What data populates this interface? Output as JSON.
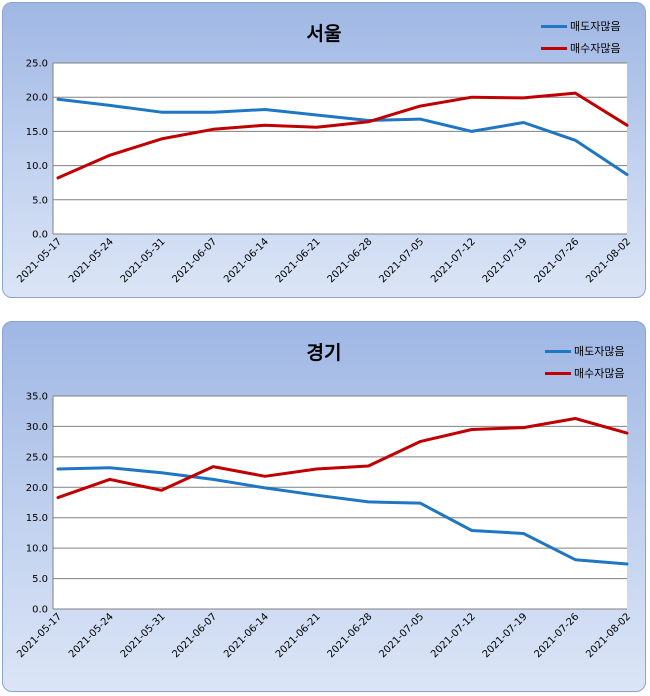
{
  "chart_data": [
    {
      "type": "line",
      "title": "서울",
      "categories": [
        "2021-05-17",
        "2021-05-24",
        "2021-05-31",
        "2021-06-07",
        "2021-06-14",
        "2021-06-21",
        "2021-06-28",
        "2021-07-05",
        "2021-07-12",
        "2021-07-19",
        "2021-07-26",
        "2021-08-02"
      ],
      "series": [
        {
          "name": "매도자많음",
          "color": "#1f77c4",
          "values": [
            19.7,
            18.8,
            17.8,
            17.8,
            18.2,
            17.4,
            16.6,
            16.8,
            15.0,
            16.3,
            13.7,
            8.7
          ]
        },
        {
          "name": "매수자많음",
          "color": "#c00000",
          "values": [
            8.2,
            11.5,
            13.9,
            15.3,
            15.9,
            15.6,
            16.4,
            18.7,
            20.0,
            19.9,
            20.6,
            15.9
          ]
        }
      ],
      "ylim": [
        0,
        25
      ],
      "yticks": [
        "0.0",
        "5.0",
        "10.0",
        "15.0",
        "20.0",
        "25.0"
      ],
      "grid": true,
      "legend": "top-right"
    },
    {
      "type": "line",
      "title": "경기",
      "categories": [
        "2021-05-17",
        "2021-05-24",
        "2021-05-31",
        "2021-06-07",
        "2021-06-14",
        "2021-06-21",
        "2021-06-28",
        "2021-07-05",
        "2021-07-12",
        "2021-07-19",
        "2021-07-26",
        "2021-08-02"
      ],
      "series": [
        {
          "name": "매도자많음",
          "color": "#1f77c4",
          "values": [
            23.0,
            23.2,
            22.4,
            21.3,
            19.9,
            18.7,
            17.6,
            17.4,
            12.9,
            12.4,
            8.1,
            7.4
          ]
        },
        {
          "name": "매수자많음",
          "color": "#c00000",
          "values": [
            18.3,
            21.3,
            19.5,
            23.4,
            21.8,
            23.0,
            23.5,
            27.5,
            29.5,
            29.8,
            31.3,
            28.9
          ]
        }
      ],
      "ylim": [
        0,
        35
      ],
      "yticks": [
        "0.0",
        "5.0",
        "10.0",
        "15.0",
        "20.0",
        "25.0",
        "30.0",
        "35.0"
      ],
      "grid": true,
      "legend": "top-right"
    }
  ]
}
